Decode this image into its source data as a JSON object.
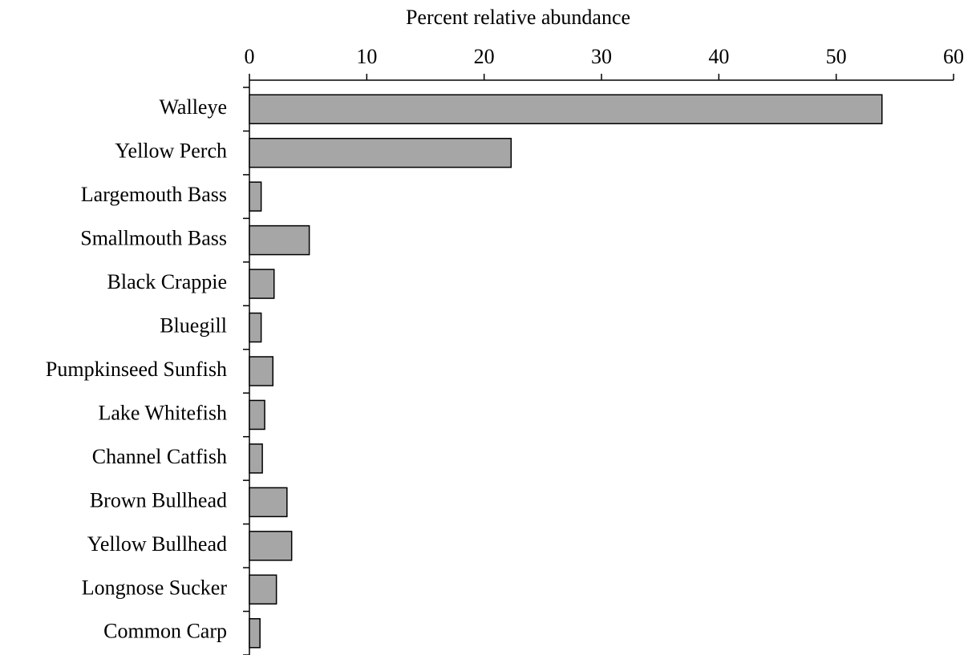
{
  "chart_data": {
    "type": "barh",
    "x_label": "Percent relative abundance",
    "categories": [
      "Walleye",
      "Yellow Perch",
      "Largemouth Bass",
      "Smallmouth Bass",
      "Black Crappie",
      "Bluegill",
      "Pumpkinseed Sunfish",
      "Lake Whitefish",
      "Channel Catfish",
      "Brown Bullhead",
      "Yellow Bullhead",
      "Longnose Sucker",
      "Common Carp"
    ],
    "values": [
      53.9,
      22.3,
      1.0,
      5.1,
      2.1,
      1.0,
      2.0,
      1.3,
      1.1,
      3.2,
      3.6,
      2.3,
      0.9
    ],
    "color": "#a6a6a6",
    "xlim": [
      0,
      60
    ],
    "xticks": [
      0,
      10,
      20,
      30,
      40,
      50,
      60
    ]
  }
}
